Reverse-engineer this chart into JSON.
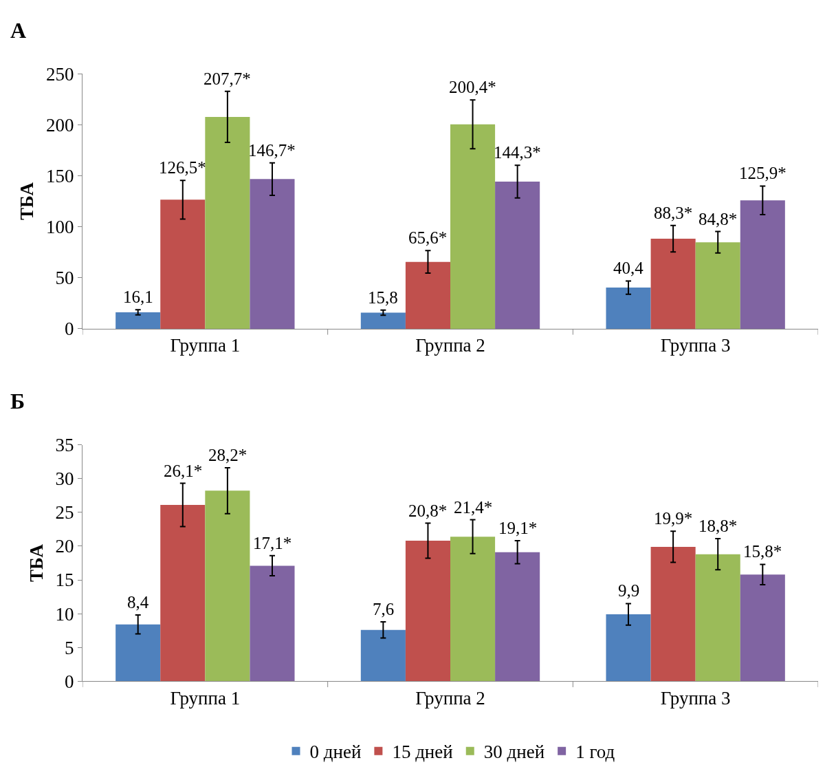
{
  "chart_data": [
    {
      "type": "bar",
      "title": "А",
      "ylabel": "ТБА",
      "categories": [
        "Группа 1",
        "Группа 2",
        "Группа 3"
      ],
      "ylim": [
        0,
        250
      ],
      "yticks": [
        0,
        50,
        100,
        150,
        200,
        250
      ],
      "grid": false,
      "series": [
        {
          "color": "#4f81bd",
          "values": [
            16.1,
            15.8,
            40.4
          ],
          "errors": [
            2.5,
            2.5,
            6.5
          ],
          "value_labels": [
            "16,1",
            "15,8",
            "40,4"
          ]
        },
        {
          "color": "#c0504d",
          "values": [
            126.5,
            65.6,
            88.3
          ],
          "errors": [
            19,
            11,
            13
          ],
          "value_labels": [
            "126,5*",
            "65,6*",
            "88,3*"
          ]
        },
        {
          "color": "#9bbb59",
          "values": [
            207.7,
            200.4,
            84.8
          ],
          "errors": [
            25,
            24,
            10.5
          ],
          "value_labels": [
            "207,7*",
            "200,4*",
            "84,8*"
          ]
        },
        {
          "color": "#8064a2",
          "values": [
            146.7,
            144.3,
            125.9
          ],
          "errors": [
            16,
            16,
            14
          ],
          "value_labels": [
            "146,7*",
            "144,3*",
            "125,9*"
          ]
        }
      ]
    },
    {
      "type": "bar",
      "title": "Б",
      "ylabel": "ТБА",
      "categories": [
        "Группа 1",
        "Группа 2",
        "Группа 3"
      ],
      "ylim": [
        0,
        35
      ],
      "yticks": [
        0,
        5,
        10,
        15,
        20,
        25,
        30,
        35
      ],
      "grid": false,
      "legend": "bottom",
      "series": [
        {
          "name": "0 дней",
          "color": "#4f81bd",
          "values": [
            8.4,
            7.6,
            9.9
          ],
          "errors": [
            1.4,
            1.2,
            1.6
          ],
          "value_labels": [
            "8,4",
            "7,6",
            "9,9"
          ]
        },
        {
          "name": "15 дней",
          "color": "#c0504d",
          "values": [
            26.1,
            20.8,
            19.9
          ],
          "errors": [
            3.2,
            2.6,
            2.3
          ],
          "value_labels": [
            "26,1*",
            "20,8*",
            "19,9*"
          ]
        },
        {
          "name": "30 дней",
          "color": "#9bbb59",
          "values": [
            28.2,
            21.4,
            18.8
          ],
          "errors": [
            3.4,
            2.5,
            2.3
          ],
          "value_labels": [
            "28,2*",
            "21,4*",
            "18,8*"
          ]
        },
        {
          "name": "1 год",
          "color": "#8064a2",
          "values": [
            17.1,
            19.1,
            15.8
          ],
          "errors": [
            1.5,
            1.7,
            1.5
          ],
          "value_labels": [
            "17,1*",
            "19,1*",
            "15,8*"
          ]
        }
      ]
    }
  ]
}
